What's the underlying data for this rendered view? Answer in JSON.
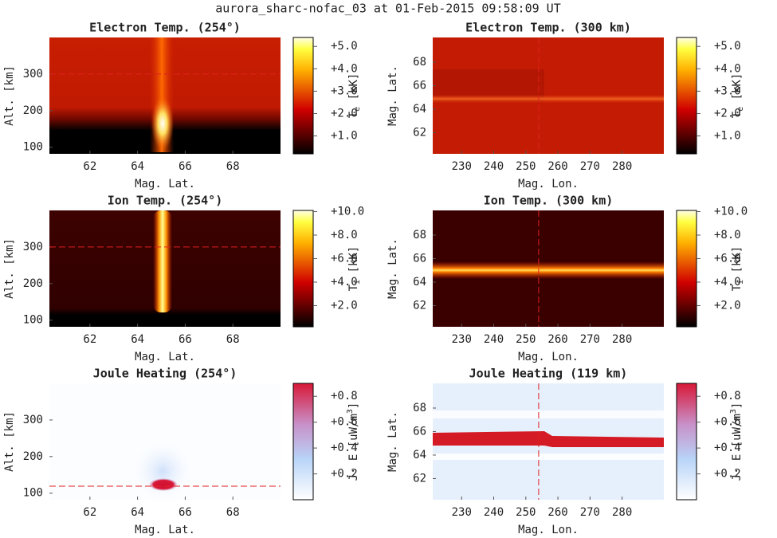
{
  "title": "aurora_sharc-nofac_03 at 01-Feb-2015 09:58:09 UT",
  "chart_data": [
    {
      "type": "heatmap",
      "title": "Electron Temp. (254°)",
      "xlabel": "Mag. Lat.",
      "ylabel": "Alt. [km]",
      "xlim": [
        60.3,
        70
      ],
      "ylim": [
        82,
        400
      ],
      "xticks": [
        62,
        64,
        66,
        68
      ],
      "yticks": [
        100,
        200,
        300
      ],
      "hline": 300,
      "colormap": "hot",
      "cbar_label": {
        "text": "T",
        "sub": "e",
        "after": " [kK]"
      },
      "clim": [
        0.2,
        5.4
      ],
      "cticks": [
        {
          "value": 1,
          "label": "+1.0"
        },
        {
          "value": 2,
          "label": "+2.0"
        },
        {
          "value": 3,
          "label": "+3.0"
        },
        {
          "value": 4,
          "label": "+4.0"
        },
        {
          "value": 5,
          "label": "+5.0"
        }
      ]
    },
    {
      "type": "heatmap",
      "title": "Electron Temp. (300 km)",
      "xlabel": "Mag. Lon.",
      "ylabel": "Mag. Lat.",
      "xlim": [
        221,
        293
      ],
      "ylim": [
        60.2,
        70.1
      ],
      "xticks": [
        230,
        240,
        250,
        260,
        270,
        280
      ],
      "yticks": [
        62,
        64,
        66,
        68
      ],
      "vline": 254,
      "colormap": "hot",
      "cbar_label": {
        "text": "T",
        "sub": "e",
        "after": " [kK]"
      },
      "clim": [
        0.2,
        5.4
      ],
      "cticks": [
        {
          "value": 1,
          "label": "+1.0"
        },
        {
          "value": 2,
          "label": "+2.0"
        },
        {
          "value": 3,
          "label": "+3.0"
        },
        {
          "value": 4,
          "label": "+4.0"
        },
        {
          "value": 5,
          "label": "+5.0"
        }
      ]
    },
    {
      "type": "heatmap",
      "title": "Ion Temp. (254°)",
      "xlabel": "Mag. Lat.",
      "ylabel": "Alt. [km]",
      "xlim": [
        60.3,
        70
      ],
      "ylim": [
        82,
        400
      ],
      "xticks": [
        62,
        64,
        66,
        68
      ],
      "yticks": [
        100,
        200,
        300
      ],
      "hline": 300,
      "colormap": "hot",
      "cbar_label": {
        "text": "T",
        "sub": "i",
        "after": " [kK]"
      },
      "clim": [
        0.2,
        10.1
      ],
      "cticks": [
        {
          "value": 2,
          "label": "+2.0"
        },
        {
          "value": 4,
          "label": "+4.0"
        },
        {
          "value": 6,
          "label": "+6.0"
        },
        {
          "value": 8,
          "label": "+8.0"
        },
        {
          "value": 10,
          "label": "+10.0"
        }
      ]
    },
    {
      "type": "heatmap",
      "title": "Ion Temp. (300 km)",
      "xlabel": "Mag. Lon.",
      "ylabel": "Mag. Lat.",
      "xlim": [
        221,
        293
      ],
      "ylim": [
        60.2,
        70.1
      ],
      "xticks": [
        230,
        240,
        250,
        260,
        270,
        280
      ],
      "yticks": [
        62,
        64,
        66,
        68
      ],
      "vline": 254,
      "colormap": "hot",
      "cbar_label": {
        "text": "T",
        "sub": "i",
        "after": " [kK]"
      },
      "clim": [
        0.2,
        10.1
      ],
      "cticks": [
        {
          "value": 2,
          "label": "+2.0"
        },
        {
          "value": 4,
          "label": "+4.0"
        },
        {
          "value": 6,
          "label": "+6.0"
        },
        {
          "value": 8,
          "label": "+8.0"
        },
        {
          "value": 10,
          "label": "+10.0"
        }
      ]
    },
    {
      "type": "heatmap",
      "title": "Joule Heating (254°)",
      "xlabel": "Mag. Lat.",
      "ylabel": "Alt. [km]",
      "xlim": [
        60.3,
        70
      ],
      "ylim": [
        82,
        400
      ],
      "xticks": [
        62,
        64,
        66,
        68
      ],
      "yticks": [
        100,
        200,
        300
      ],
      "hline": 119,
      "colormap": "bluered",
      "cbar_label": {
        "text": "J· E [uW/m",
        "sup": "3",
        "after": "]"
      },
      "clim": [
        0,
        0.9
      ],
      "cticks": [
        {
          "value": 0.2,
          "label": "+0.2"
        },
        {
          "value": 0.4,
          "label": "+0.4"
        },
        {
          "value": 0.6,
          "label": "+0.6"
        },
        {
          "value": 0.8,
          "label": "+0.8"
        }
      ]
    },
    {
      "type": "heatmap",
      "title": "Joule Heating (119 km)",
      "xlabel": "Mag. Lon.",
      "ylabel": "Mag. Lat.",
      "xlim": [
        221,
        293
      ],
      "ylim": [
        60.2,
        70.1
      ],
      "xticks": [
        230,
        240,
        250,
        260,
        270,
        280
      ],
      "yticks": [
        62,
        64,
        66,
        68
      ],
      "vline": 254,
      "colormap": "bluered",
      "cbar_label": {
        "text": "J· E [uW/m",
        "sup": "3",
        "after": "]"
      },
      "clim": [
        0,
        0.9
      ],
      "cticks": [
        {
          "value": 0.2,
          "label": "+0.2"
        },
        {
          "value": 0.4,
          "label": "+0.4"
        },
        {
          "value": 0.6,
          "label": "+0.6"
        },
        {
          "value": 0.8,
          "label": "+0.8"
        }
      ]
    }
  ]
}
